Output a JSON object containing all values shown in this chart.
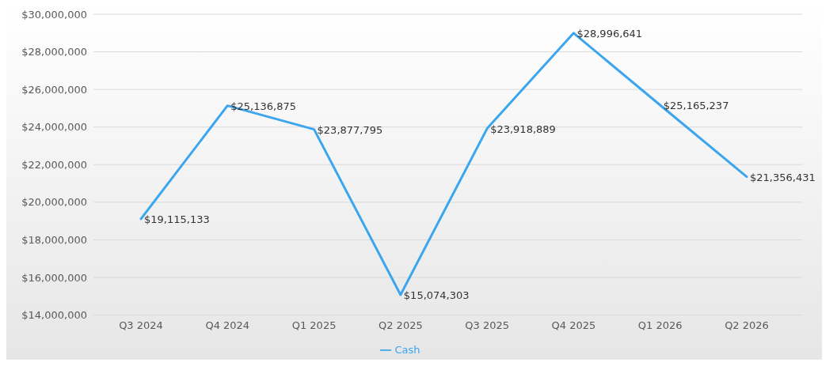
{
  "chart_data": {
    "type": "line",
    "categories": [
      "Q3 2024",
      "Q4 2024",
      "Q1 2025",
      "Q2 2025",
      "Q3 2025",
      "Q4 2025",
      "Q1 2026",
      "Q2 2026"
    ],
    "series": [
      {
        "name": "Cash",
        "color": "#3ba6ee",
        "values": [
          19115133,
          25136875,
          23877795,
          15074303,
          23918889,
          28996641,
          25165237,
          21356431
        ]
      }
    ],
    "ylim": [
      14000000,
      30000000
    ],
    "yticks": [
      {
        "value": 14000000,
        "label": "$14,000,000"
      },
      {
        "value": 16000000,
        "label": "$16,000,000"
      },
      {
        "value": 18000000,
        "label": "$18,000,000"
      },
      {
        "value": 20000000,
        "label": "$20,000,000"
      },
      {
        "value": 22000000,
        "label": "$22,000,000"
      },
      {
        "value": 24000000,
        "label": "$24,000,000"
      },
      {
        "value": 26000000,
        "label": "$26,000,000"
      },
      {
        "value": 28000000,
        "label": "$28,000,000"
      },
      {
        "value": 30000000,
        "label": "$30,000,000"
      }
    ],
    "grid": "y",
    "legend": "bottom",
    "marker": "none",
    "line_style": "solid",
    "value_labels": [
      [
        "$19,115,133",
        "$25,136,875",
        "$23,877,795",
        "$15,074,303",
        "$23,918,889",
        "$28,996,641",
        "$25,165,237",
        "$21,356,431"
      ]
    ]
  }
}
